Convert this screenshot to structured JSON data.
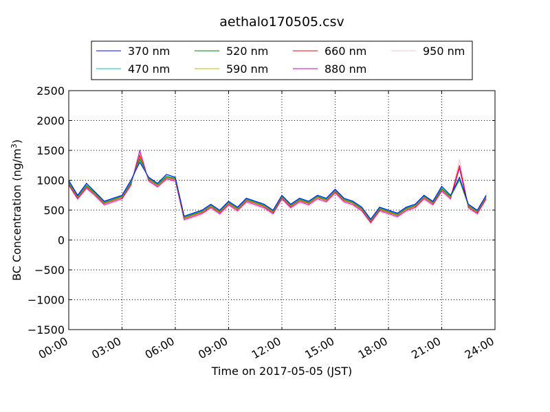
{
  "chart_data": {
    "type": "line",
    "title": "aethalo170505.csv",
    "xlabel": "Time on 2017-05-05 (JST)",
    "ylabel": "BC Concentration (ng/m³)",
    "ylabel_parts": {
      "main": "BC Concentration (ng/m",
      "sup": "3",
      "close": ")"
    },
    "xlim": [
      "00:00",
      "24:00"
    ],
    "ylim": [
      -1500,
      2500
    ],
    "xticks": [
      "00:00",
      "03:00",
      "06:00",
      "09:00",
      "12:00",
      "15:00",
      "18:00",
      "21:00",
      "24:00"
    ],
    "yticks": [
      -1500,
      -1000,
      -500,
      0,
      500,
      1000,
      1500,
      2000,
      2500
    ],
    "grid": true,
    "legend_position": "top",
    "series": [
      {
        "name": "370 nm",
        "color": "#0000ff",
        "x": [
          "00:00",
          "00:30",
          "01:00",
          "01:30",
          "02:00",
          "02:30",
          "03:00",
          "03:30",
          "04:00",
          "04:30",
          "05:00",
          "05:30",
          "06:00",
          "06:30",
          "07:00",
          "07:30",
          "08:00",
          "08:30",
          "09:00",
          "09:30",
          "10:00",
          "10:30",
          "11:00",
          "11:30",
          "12:00",
          "12:30",
          "13:00",
          "13:30",
          "14:00",
          "14:30",
          "15:00",
          "15:30",
          "16:00",
          "16:30",
          "17:00",
          "17:30",
          "18:00",
          "18:30",
          "19:00",
          "19:30",
          "20:00",
          "20:30",
          "21:00",
          "21:30",
          "22:00",
          "22:30",
          "23:00",
          "23:30"
        ],
        "y": [
          1000,
          750,
          950,
          800,
          650,
          700,
          750,
          1000,
          1300,
          1050,
          950,
          1100,
          1050,
          400,
          450,
          500,
          600,
          500,
          650,
          550,
          700,
          650,
          600,
          500,
          750,
          600,
          700,
          650,
          750,
          700,
          850,
          700,
          650,
          550,
          350,
          550,
          500,
          450,
          550,
          600,
          750,
          650,
          900,
          750,
          1050,
          600,
          500,
          750
        ]
      },
      {
        "name": "470 nm",
        "color": "#00bfbf",
        "x": [
          "00:00",
          "00:30",
          "01:00",
          "01:30",
          "02:00",
          "02:30",
          "03:00",
          "03:30",
          "04:00",
          "04:30",
          "05:00",
          "05:30",
          "06:00",
          "06:30",
          "07:00",
          "07:30",
          "08:00",
          "08:30",
          "09:00",
          "09:30",
          "10:00",
          "10:30",
          "11:00",
          "11:30",
          "12:00",
          "12:30",
          "13:00",
          "13:30",
          "14:00",
          "14:30",
          "15:00",
          "15:30",
          "16:00",
          "16:30",
          "17:00",
          "17:30",
          "18:00",
          "18:30",
          "19:00",
          "19:30",
          "20:00",
          "20:30",
          "21:00",
          "21:30",
          "22:00",
          "22:30",
          "23:00",
          "23:30"
        ],
        "y": [
          980,
          740,
          930,
          790,
          640,
          690,
          740,
          980,
          1330,
          1040,
          940,
          1080,
          1040,
          390,
          440,
          490,
          590,
          490,
          640,
          540,
          690,
          640,
          590,
          490,
          740,
          590,
          690,
          640,
          740,
          690,
          840,
          690,
          640,
          540,
          340,
          540,
          490,
          440,
          540,
          590,
          740,
          640,
          880,
          740,
          1030,
          590,
          490,
          740
        ]
      },
      {
        "name": "520 nm",
        "color": "#008000",
        "x": [
          "00:00",
          "00:30",
          "01:00",
          "01:30",
          "02:00",
          "02:30",
          "03:00",
          "03:30",
          "04:00",
          "04:30",
          "05:00",
          "05:30",
          "06:00",
          "06:30",
          "07:00",
          "07:30",
          "08:00",
          "08:30",
          "09:00",
          "09:30",
          "10:00",
          "10:30",
          "11:00",
          "11:30",
          "12:00",
          "12:30",
          "13:00",
          "13:30",
          "14:00",
          "14:30",
          "15:00",
          "15:30",
          "16:00",
          "16:30",
          "17:00",
          "17:30",
          "18:00",
          "18:30",
          "19:00",
          "19:30",
          "20:00",
          "20:30",
          "21:00",
          "21:30",
          "22:00",
          "22:30",
          "23:00",
          "23:30"
        ],
        "y": [
          960,
          730,
          910,
          780,
          630,
          680,
          730,
          960,
          1360,
          1030,
          930,
          1060,
          1030,
          380,
          430,
          480,
          580,
          480,
          630,
          530,
          680,
          630,
          580,
          480,
          730,
          580,
          680,
          630,
          730,
          680,
          830,
          680,
          630,
          530,
          330,
          530,
          480,
          430,
          530,
          580,
          730,
          630,
          860,
          730,
          1010,
          580,
          480,
          730
        ]
      },
      {
        "name": "590 nm",
        "color": "#bfbf00",
        "x": [
          "00:00",
          "00:30",
          "01:00",
          "01:30",
          "02:00",
          "02:30",
          "03:00",
          "03:30",
          "04:00",
          "04:30",
          "05:00",
          "05:30",
          "06:00",
          "06:30",
          "07:00",
          "07:30",
          "08:00",
          "08:30",
          "09:00",
          "09:30",
          "10:00",
          "10:30",
          "11:00",
          "11:30",
          "12:00",
          "12:30",
          "13:00",
          "13:30",
          "14:00",
          "14:30",
          "15:00",
          "15:30",
          "16:00",
          "16:30",
          "17:00",
          "17:30",
          "18:00",
          "18:30",
          "19:00",
          "19:30",
          "20:00",
          "20:30",
          "21:00",
          "21:30",
          "22:00",
          "22:30",
          "23:00",
          "23:30"
        ],
        "y": [
          950,
          720,
          900,
          770,
          620,
          670,
          720,
          950,
          1380,
          1020,
          920,
          1050,
          1020,
          370,
          420,
          470,
          570,
          470,
          620,
          520,
          670,
          620,
          570,
          470,
          720,
          570,
          670,
          620,
          720,
          670,
          820,
          670,
          620,
          520,
          320,
          520,
          470,
          420,
          520,
          570,
          720,
          620,
          850,
          720,
          1000,
          570,
          470,
          720
        ]
      },
      {
        "name": "660 nm",
        "color": "#ff0000",
        "x": [
          "00:00",
          "00:30",
          "01:00",
          "01:30",
          "02:00",
          "02:30",
          "03:00",
          "03:30",
          "04:00",
          "04:30",
          "05:00",
          "05:30",
          "06:00",
          "06:30",
          "07:00",
          "07:30",
          "08:00",
          "08:30",
          "09:00",
          "09:30",
          "10:00",
          "10:30",
          "11:00",
          "11:30",
          "12:00",
          "12:30",
          "13:00",
          "13:30",
          "14:00",
          "14:30",
          "15:00",
          "15:30",
          "16:00",
          "16:30",
          "17:00",
          "17:30",
          "18:00",
          "18:30",
          "19:00",
          "19:30",
          "20:00",
          "20:30",
          "21:00",
          "21:30",
          "22:00",
          "22:30",
          "23:00",
          "23:30"
        ],
        "y": [
          940,
          710,
          890,
          760,
          610,
          660,
          710,
          940,
          1420,
          1010,
          910,
          1040,
          1010,
          360,
          410,
          460,
          560,
          460,
          610,
          510,
          660,
          610,
          560,
          460,
          710,
          560,
          660,
          610,
          710,
          660,
          810,
          660,
          610,
          510,
          310,
          510,
          460,
          410,
          510,
          560,
          710,
          610,
          840,
          710,
          1250,
          560,
          460,
          710
        ]
      },
      {
        "name": "880 nm",
        "color": "#bf00bf",
        "x": [
          "00:00",
          "00:30",
          "01:00",
          "01:30",
          "02:00",
          "02:30",
          "03:00",
          "03:30",
          "04:00",
          "04:30",
          "05:00",
          "05:30",
          "06:00",
          "06:30",
          "07:00",
          "07:30",
          "08:00",
          "08:30",
          "09:00",
          "09:30",
          "10:00",
          "10:30",
          "11:00",
          "11:30",
          "12:00",
          "12:30",
          "13:00",
          "13:30",
          "14:00",
          "14:30",
          "15:00",
          "15:30",
          "16:00",
          "16:30",
          "17:00",
          "17:30",
          "18:00",
          "18:30",
          "19:00",
          "19:30",
          "20:00",
          "20:30",
          "21:00",
          "21:30",
          "22:00",
          "22:30",
          "23:00",
          "23:30"
        ],
        "y": [
          920,
          690,
          870,
          740,
          590,
          640,
          690,
          920,
          1500,
          990,
          890,
          1020,
          990,
          340,
          390,
          440,
          540,
          440,
          590,
          490,
          640,
          590,
          540,
          440,
          690,
          540,
          640,
          590,
          690,
          640,
          790,
          640,
          590,
          490,
          290,
          490,
          440,
          390,
          490,
          540,
          690,
          590,
          820,
          690,
          1200,
          540,
          440,
          690
        ]
      },
      {
        "name": "950 nm",
        "color": "#ffc0cb",
        "x": [
          "00:00",
          "00:30",
          "01:00",
          "01:30",
          "02:00",
          "02:30",
          "03:00",
          "03:30",
          "04:00",
          "04:30",
          "05:00",
          "05:30",
          "06:00",
          "06:30",
          "07:00",
          "07:30",
          "08:00",
          "08:30",
          "09:00",
          "09:30",
          "10:00",
          "10:30",
          "11:00",
          "11:30",
          "12:00",
          "12:30",
          "13:00",
          "13:30",
          "14:00",
          "14:30",
          "15:00",
          "15:30",
          "16:00",
          "16:30",
          "17:00",
          "17:30",
          "18:00",
          "18:30",
          "19:00",
          "19:30",
          "20:00",
          "20:30",
          "21:00",
          "21:30",
          "22:00",
          "22:30",
          "23:00",
          "23:30"
        ],
        "y": [
          900,
          670,
          850,
          720,
          570,
          620,
          670,
          900,
          1450,
          970,
          870,
          1000,
          970,
          320,
          370,
          420,
          520,
          420,
          570,
          470,
          620,
          570,
          520,
          420,
          670,
          520,
          620,
          570,
          670,
          620,
          770,
          620,
          570,
          470,
          270,
          470,
          420,
          370,
          470,
          520,
          670,
          570,
          800,
          670,
          1350,
          520,
          420,
          670
        ]
      }
    ]
  }
}
